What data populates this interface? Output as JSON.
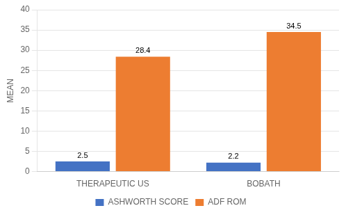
{
  "chart_data": {
    "type": "bar",
    "categories": [
      "THERAPEUTIC US",
      "BOBATH"
    ],
    "series": [
      {
        "name": "ASHWORTH SCORE",
        "color": "#4472C4",
        "values": [
          2.5,
          2.2
        ]
      },
      {
        "name": "ADF ROM",
        "color": "#ED7D31",
        "values": [
          28.4,
          34.5
        ]
      }
    ],
    "ylabel": "MEAN",
    "ylim": [
      0,
      40
    ],
    "yticks": [
      0,
      5,
      10,
      15,
      20,
      25,
      30,
      35,
      40
    ],
    "grid": "y",
    "legend": "bottom",
    "data_labels": true
  }
}
